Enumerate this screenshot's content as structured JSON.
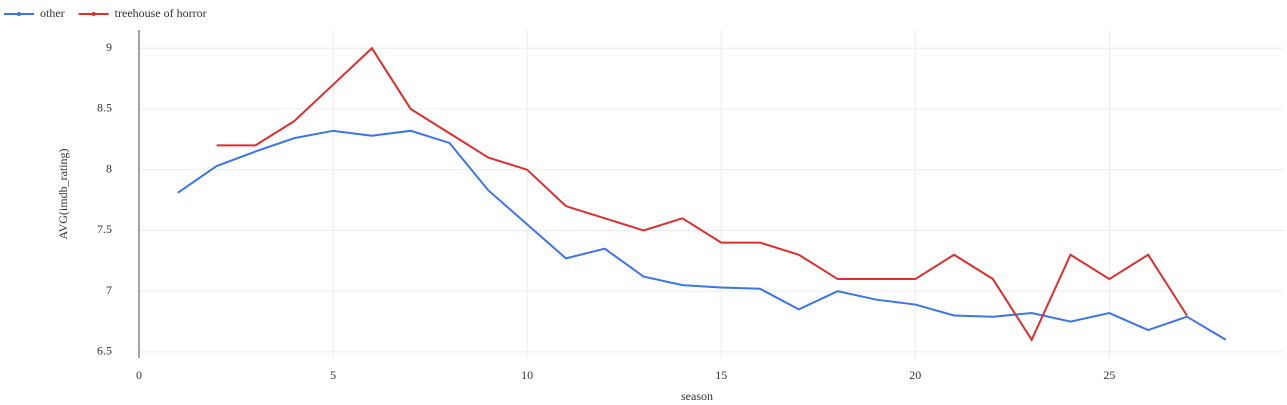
{
  "chart_data": {
    "type": "line",
    "x_label": "season",
    "y_label": "AVG(imdb_rating)",
    "xlim": [
      0,
      29.5
    ],
    "xticks": [
      0,
      5,
      10,
      15,
      20,
      25
    ],
    "ylim": [
      6.45,
      9.15
    ],
    "yticks": [
      6.5,
      7,
      7.5,
      8,
      8.5,
      9
    ],
    "grid": true,
    "legend": "top-left",
    "series": [
      {
        "name": "other",
        "color": "#3d74e8",
        "x": [
          1,
          2,
          3,
          4,
          5,
          6,
          7,
          8,
          9,
          10,
          11,
          12,
          13,
          14,
          15,
          16,
          17,
          18,
          19,
          20,
          21,
          22,
          23,
          24,
          25,
          26,
          27,
          28
        ],
        "values": [
          7.81,
          8.03,
          8.15,
          8.26,
          8.32,
          8.28,
          8.32,
          8.22,
          7.83,
          7.55,
          7.27,
          7.35,
          7.12,
          7.05,
          7.03,
          7.02,
          6.85,
          7.0,
          6.93,
          6.89,
          6.8,
          6.79,
          6.82,
          6.75,
          6.82,
          6.68,
          6.79,
          6.6
        ]
      },
      {
        "name": "treehouse of horror",
        "color": "#dc2e2e",
        "x": [
          2,
          3,
          4,
          5,
          6,
          7,
          8,
          9,
          10,
          11,
          12,
          13,
          14,
          15,
          16,
          17,
          18,
          19,
          20,
          21,
          22,
          23,
          24,
          25,
          26,
          27
        ],
        "values": [
          8.2,
          8.2,
          8.4,
          8.7,
          9.0,
          8.5,
          8.3,
          8.1,
          8.0,
          7.7,
          7.6,
          7.5,
          7.6,
          7.4,
          7.4,
          7.3,
          7.1,
          7.1,
          7.1,
          7.3,
          7.1,
          6.6,
          7.3,
          7.1,
          7.3,
          6.8
        ]
      }
    ]
  }
}
